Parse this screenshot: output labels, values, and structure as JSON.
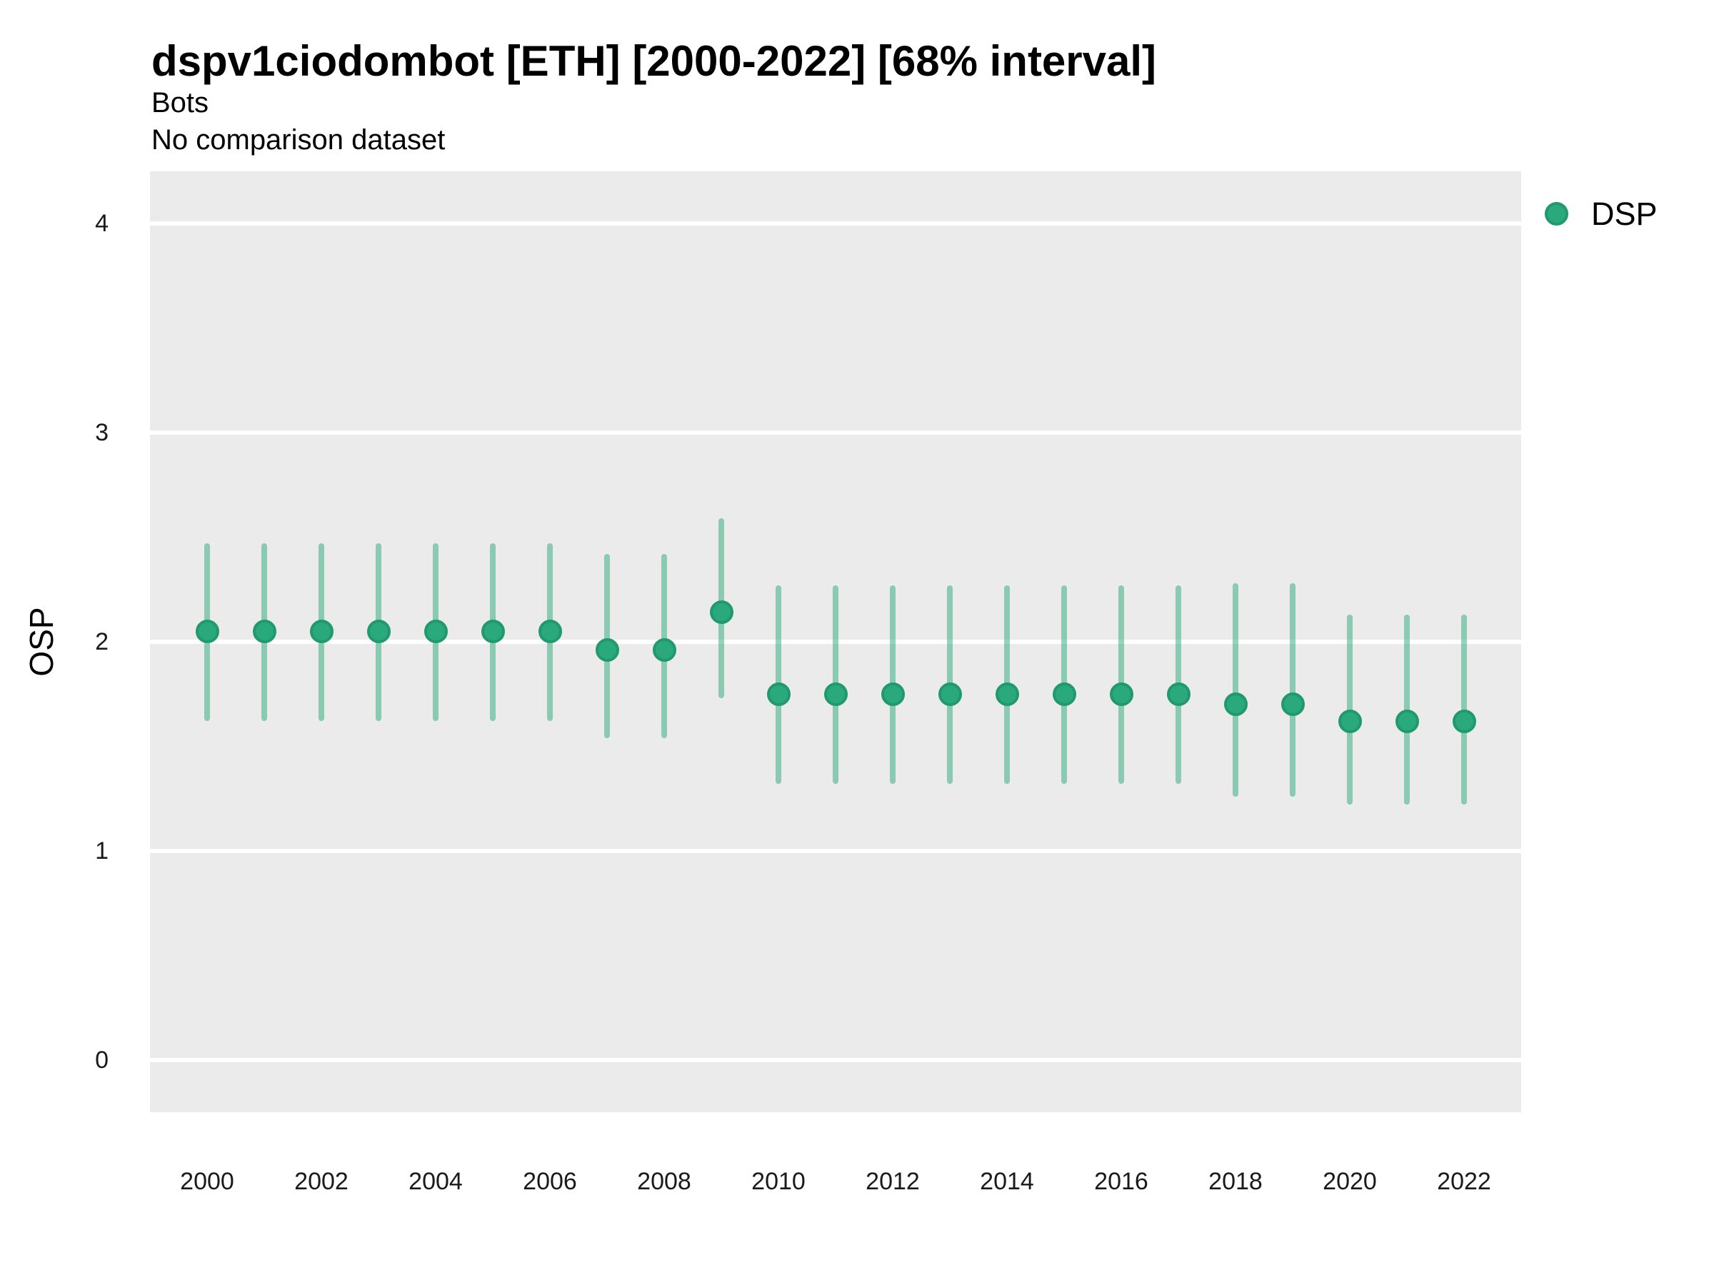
{
  "header": {
    "title": "dspv1ciodombot [ETH] [2000-2022] [68% interval]",
    "subtitle1": "Bots",
    "subtitle2": "No comparison dataset"
  },
  "axes": {
    "y_title": "OSP"
  },
  "legend": {
    "position": "right",
    "items": [
      {
        "label": "DSP",
        "marker": "circle"
      }
    ]
  },
  "colors": {
    "background": "#ffffff",
    "panel_bg": "#ebebeb",
    "gridline": "#ffffff",
    "point_fill": "#2aa97c",
    "point_stroke": "#21996f",
    "interval_line": "rgba(42,169,124,0.5)",
    "title_text": "#000000",
    "tick_text": "#1a1a1a"
  },
  "chart_data": {
    "type": "scatter",
    "subtype": "pointrange",
    "title": "dspv1ciodombot [ETH] [2000-2022] [68% interval]",
    "subtitle": [
      "Bots",
      "No comparison dataset"
    ],
    "xlabel": "",
    "ylabel": "OSP",
    "legend_position": "right",
    "grid": "horizontal major gridlines only, white on grey panel",
    "xlim": [
      1999,
      2023
    ],
    "ylim": [
      -0.25,
      4.25
    ],
    "xticks": [
      2000,
      2002,
      2004,
      2006,
      2008,
      2010,
      2012,
      2014,
      2016,
      2018,
      2020,
      2022
    ],
    "yticks": [
      0,
      1,
      2,
      3,
      4
    ],
    "x": [
      2000,
      2001,
      2002,
      2003,
      2004,
      2005,
      2006,
      2007,
      2008,
      2009,
      2010,
      2011,
      2012,
      2013,
      2014,
      2015,
      2016,
      2017,
      2018,
      2019,
      2020,
      2021,
      2022
    ],
    "series": [
      {
        "name": "DSP",
        "interval": "68%",
        "mid": [
          2.05,
          2.05,
          2.05,
          2.05,
          2.05,
          2.05,
          2.05,
          1.96,
          1.96,
          2.14,
          1.75,
          1.75,
          1.75,
          1.75,
          1.75,
          1.75,
          1.75,
          1.75,
          1.7,
          1.7,
          1.62,
          1.62,
          1.62
        ],
        "lo": [
          1.62,
          1.62,
          1.62,
          1.62,
          1.62,
          1.62,
          1.62,
          1.54,
          1.54,
          1.73,
          1.32,
          1.32,
          1.32,
          1.32,
          1.32,
          1.32,
          1.32,
          1.32,
          1.26,
          1.26,
          1.22,
          1.22,
          1.22
        ],
        "hi": [
          2.47,
          2.47,
          2.47,
          2.47,
          2.47,
          2.47,
          2.47,
          2.42,
          2.42,
          2.59,
          2.27,
          2.27,
          2.27,
          2.27,
          2.27,
          2.27,
          2.27,
          2.27,
          2.28,
          2.28,
          2.13,
          2.13,
          2.13
        ]
      }
    ]
  }
}
